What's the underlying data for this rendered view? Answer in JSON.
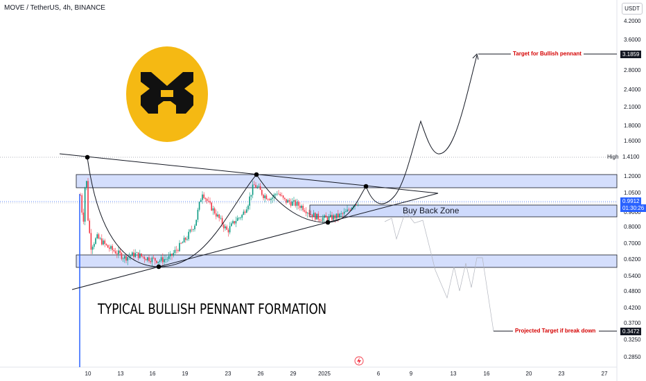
{
  "header": {
    "symbol_line": "MOVE / TetherUS, 4h, BINANCE",
    "currency": "USDT"
  },
  "annotations": {
    "buy_back_zone": "Buy Back Zone",
    "pattern_title": "TYPICAL BULLISH PENNANT FORMATION",
    "bull_target": "Target for Bullish pennant",
    "bear_target": "Projected Target if break down",
    "high_label": "High"
  },
  "price_boxes": {
    "bull_target": "3.1859",
    "high": "1.4100",
    "current_price": "0.9912",
    "countdown": "01:30:26",
    "bear_target": "0.3472"
  },
  "colors": {
    "up": "#089981",
    "down": "#f23645",
    "zone_fill": "#c5d3fb",
    "zone_border": "#131722",
    "accent_blue": "#2962ff",
    "logo_bg": "#f5b913",
    "target_text": "#d50000"
  },
  "icons": [
    "move-coin-logo-icon",
    "lightning-icon"
  ],
  "chart_data": {
    "type": "candlestick",
    "scale": "log",
    "x_ticks": [
      "10",
      "13",
      "16",
      "19",
      "23",
      "26",
      "29",
      "2025",
      "6",
      "9",
      "13",
      "16",
      "20",
      "23",
      "27"
    ],
    "y_ticks": [
      "4.2000",
      "3.6000",
      "2.8000",
      "2.4000",
      "2.1000",
      "1.8000",
      "1.6000",
      "1.2000",
      "1.0500",
      "0.9000",
      "0.8000",
      "0.7000",
      "0.6200",
      "0.5400",
      "0.4800",
      "0.4200",
      "0.3700",
      "0.3250",
      "0.2850"
    ],
    "key_levels": {
      "high": 1.41,
      "current": 0.9912,
      "bull_target": 3.1859,
      "bear_target": 0.3472
    },
    "zones": [
      {
        "low": 1.11,
        "high": 1.24
      },
      {
        "low": 0.88,
        "high": 0.95
      },
      {
        "low": 0.58,
        "high": 0.64
      }
    ],
    "grid": false,
    "legend": "none"
  }
}
